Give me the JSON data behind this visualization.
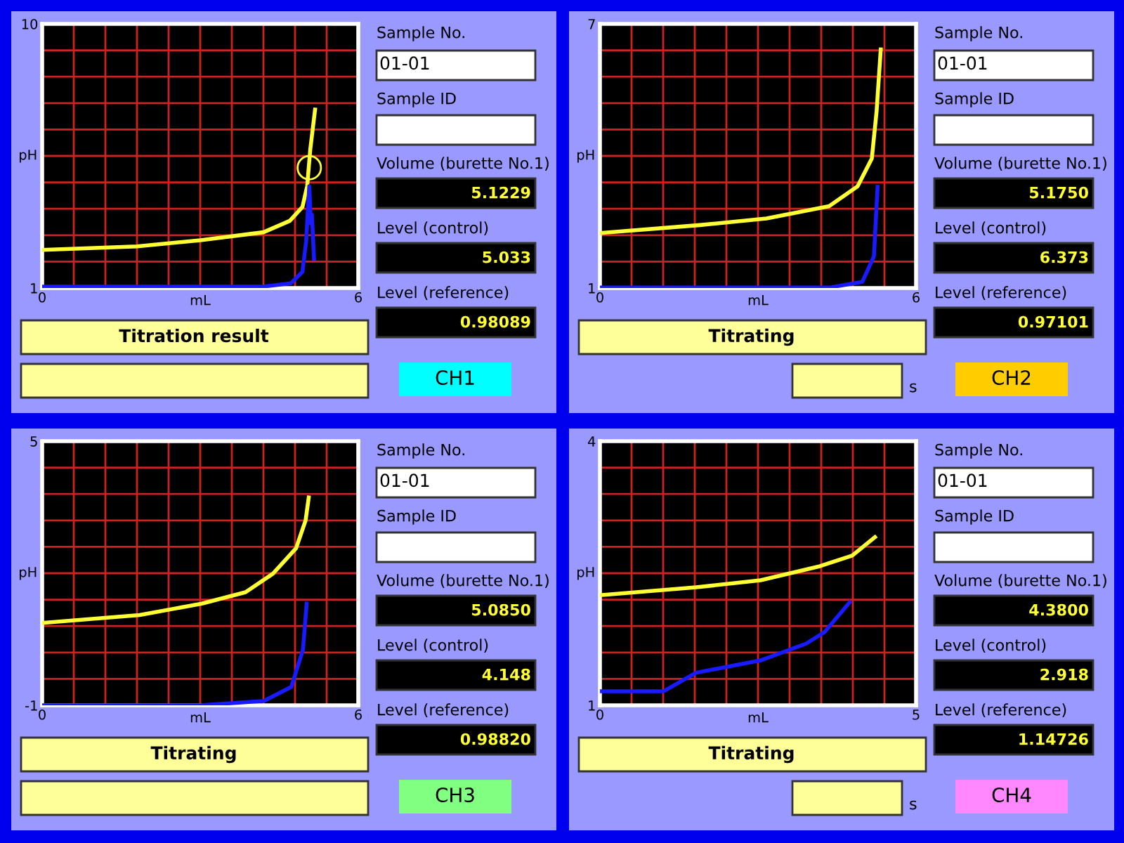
{
  "chart_data": [
    {
      "type": "line",
      "xlabel": "mL",
      "ylabel": "pH",
      "grid": true,
      "xlim": [
        0,
        6
      ],
      "ylim": [
        1,
        10
      ],
      "xticks": [
        0,
        {
          "value": 0.6,
          "label": null
        },
        {
          "value": 1.2,
          "label": null
        },
        {
          "value": 1.8,
          "label": null
        },
        {
          "value": 2.4,
          "label": null
        },
        {
          "value": 3,
          "label": null
        },
        {
          "value": 3.6,
          "label": null
        },
        {
          "value": 4.2,
          "label": null
        },
        {
          "value": 4.8,
          "label": null
        },
        {
          "value": 5.4,
          "label": null
        },
        6
      ],
      "yticks": [
        1,
        {
          "value": 1.9,
          "label": null
        },
        {
          "value": 2.8,
          "label": null
        },
        {
          "value": 3.7,
          "label": null
        },
        {
          "value": 4.6,
          "label": null
        },
        {
          "value": 5.5,
          "label": null
        },
        {
          "value": 6.4,
          "label": null
        },
        {
          "value": 7.3,
          "label": null
        },
        {
          "value": 8.2,
          "label": null
        },
        {
          "value": 9.1,
          "label": null
        },
        10
      ],
      "series": [
        {
          "color": "#ffff33",
          "x": [
            0,
            1.8,
            3.0,
            4.2,
            4.7,
            4.94,
            5.03,
            5.09,
            5.18
          ],
          "values": [
            2.3,
            2.42,
            2.63,
            2.9,
            3.29,
            3.76,
            4.47,
            5.74,
            7.08
          ]
        },
        {
          "color": "#1a1aff",
          "x": [
            0,
            4.2,
            4.72,
            4.94,
            5.01,
            5.07,
            5.1,
            5.12,
            5.16
          ],
          "values": [
            1.05,
            1.05,
            1.16,
            1.55,
            2.58,
            4.47,
            3.2,
            3.5,
            2.0
          ]
        },
        {
          "type": "scatter",
          "marker": "circle",
          "color": "#ffff33",
          "x": [
            5.07
          ],
          "values": [
            5.1
          ]
        }
      ]
    },
    {
      "type": "other",
      "colors": [
        "#00ffff"
      ],
      "annotations": [
        "Sample No.",
        "01-01",
        "Sample ID",
        "Volume (burette No.1)",
        "5.1229",
        "Level (control)",
        "5.033",
        "Level (reference)",
        "0.98089",
        "Titration result",
        "CH1"
      ]
    },
    {
      "type": "line",
      "xlabel": "mL",
      "ylabel": "pH",
      "grid": true,
      "xlim": [
        0,
        6
      ],
      "ylim": [
        1,
        7
      ],
      "xticks": [
        0,
        {
          "value": 0.6,
          "label": null
        },
        {
          "value": 1.2,
          "label": null
        },
        {
          "value": 1.8,
          "label": null
        },
        {
          "value": 2.4,
          "label": null
        },
        {
          "value": 3,
          "label": null
        },
        {
          "value": 3.6,
          "label": null
        },
        {
          "value": 4.2,
          "label": null
        },
        {
          "value": 4.8,
          "label": null
        },
        {
          "value": 5.4,
          "label": null
        },
        6
      ],
      "yticks": [
        1,
        {
          "value": 1.6,
          "label": null
        },
        {
          "value": 2.2,
          "label": null
        },
        {
          "value": 2.8,
          "label": null
        },
        {
          "value": 3.4,
          "label": null
        },
        {
          "value": 4,
          "label": null
        },
        {
          "value": 4.6,
          "label": null
        },
        {
          "value": 5.2,
          "label": null
        },
        {
          "value": 5.8,
          "label": null
        },
        {
          "value": 6.4,
          "label": null
        },
        7
      ],
      "series": [
        {
          "color": "#ffff33",
          "x": [
            0,
            1.9,
            3.16,
            4.35,
            4.89,
            5.16,
            5.25,
            5.33
          ],
          "values": [
            2.25,
            2.43,
            2.58,
            2.86,
            3.31,
            3.94,
            5.0,
            6.42
          ]
        },
        {
          "color": "#1a1aff",
          "x": [
            0,
            4.35,
            4.98,
            5.2,
            5.27
          ],
          "values": [
            1.01,
            1.01,
            1.14,
            1.72,
            3.3
          ]
        }
      ]
    },
    {
      "type": "other",
      "colors": [
        "#ffcc00"
      ],
      "annotations": [
        "Sample No.",
        "01-01",
        "Sample ID",
        "Volume (burette No.1)",
        "5.1750",
        "Level (control)",
        "6.373",
        "Level (reference)",
        "0.97101",
        "Titrating",
        "CH2",
        "s"
      ]
    },
    {
      "type": "line",
      "xlabel": "mL",
      "ylabel": "pH",
      "grid": true,
      "xlim": [
        0,
        6
      ],
      "ylim": [
        -1,
        5
      ],
      "xticks": [
        0,
        {
          "value": 0.6,
          "label": null
        },
        {
          "value": 1.2,
          "label": null
        },
        {
          "value": 1.8,
          "label": null
        },
        {
          "value": 2.4,
          "label": null
        },
        {
          "value": 3,
          "label": null
        },
        {
          "value": 3.6,
          "label": null
        },
        {
          "value": 4.2,
          "label": null
        },
        {
          "value": 4.8,
          "label": null
        },
        {
          "value": 5.4,
          "label": null
        },
        6
      ],
      "yticks": [
        {
          "value": -1,
          "label": "-1"
        },
        {
          "value": -0.4,
          "label": null
        },
        {
          "value": 0.2,
          "label": null
        },
        {
          "value": 0.8,
          "label": null
        },
        {
          "value": 1.4,
          "label": null
        },
        {
          "value": 2,
          "label": null
        },
        {
          "value": 2.6,
          "label": null
        },
        {
          "value": 3.2,
          "label": null
        },
        {
          "value": 3.8,
          "label": null
        },
        {
          "value": 4.4,
          "label": null
        },
        5
      ],
      "series": [
        {
          "color": "#ffff33",
          "x": [
            0,
            1.85,
            3.03,
            3.86,
            4.38,
            4.82,
            5.0,
            5.06
          ],
          "values": [
            0.87,
            1.05,
            1.31,
            1.57,
            1.99,
            2.57,
            3.2,
            3.72
          ]
        },
        {
          "color": "#1a1aff",
          "x": [
            0,
            3.0,
            4.21,
            4.73,
            4.95,
            5.02
          ],
          "values": [
            -1.0,
            -1.0,
            -0.9,
            -0.58,
            0.26,
            1.31
          ]
        }
      ]
    },
    {
      "type": "other",
      "colors": [
        "#80ff80"
      ],
      "annotations": [
        "Sample No.",
        "01-01",
        "Sample ID",
        "Volume (burette No.1)",
        "5.0850",
        "Level (control)",
        "4.148",
        "Level (reference)",
        "0.98820",
        "Titrating",
        "CH3"
      ]
    },
    {
      "type": "line",
      "xlabel": "mL",
      "ylabel": "pH",
      "grid": true,
      "xlim": [
        0,
        5
      ],
      "ylim": [
        1,
        4
      ],
      "xticks": [
        0,
        {
          "value": 0.5,
          "label": null
        },
        {
          "value": 1,
          "label": null
        },
        {
          "value": 1.5,
          "label": null
        },
        {
          "value": 2,
          "label": null
        },
        {
          "value": 2.5,
          "label": null
        },
        {
          "value": 3,
          "label": null
        },
        {
          "value": 3.5,
          "label": null
        },
        {
          "value": 4,
          "label": null
        },
        {
          "value": 4.5,
          "label": null
        },
        5
      ],
      "yticks": [
        1,
        {
          "value": 1.3,
          "label": null
        },
        {
          "value": 1.6,
          "label": null
        },
        {
          "value": 1.9,
          "label": null
        },
        {
          "value": 2.2,
          "label": null
        },
        {
          "value": 2.5,
          "label": null
        },
        {
          "value": 2.8,
          "label": null
        },
        {
          "value": 3.1,
          "label": null
        },
        {
          "value": 3.4,
          "label": null
        },
        {
          "value": 3.7,
          "label": null
        },
        4
      ],
      "series": [
        {
          "color": "#ffff33",
          "x": [
            0,
            1.52,
            2.54,
            3.48,
            3.99,
            4.35
          ],
          "values": [
            2.25,
            2.34,
            2.42,
            2.58,
            2.7,
            2.91
          ]
        },
        {
          "color": "#1a1aff",
          "x": [
            0,
            1.01,
            1.52,
            2.54,
            3.26,
            3.55,
            3.95
          ],
          "values": [
            1.16,
            1.16,
            1.37,
            1.51,
            1.7,
            1.83,
            2.17
          ]
        }
      ]
    },
    {
      "type": "other",
      "colors": [
        "#ff88ff"
      ],
      "annotations": [
        "Sample No.",
        "01-01",
        "Sample ID",
        "Volume (burette No.1)",
        "4.3800",
        "Level (control)",
        "2.918",
        "Level (reference)",
        "1.14726",
        "Titrating",
        "CH4",
        "s"
      ]
    }
  ]
}
